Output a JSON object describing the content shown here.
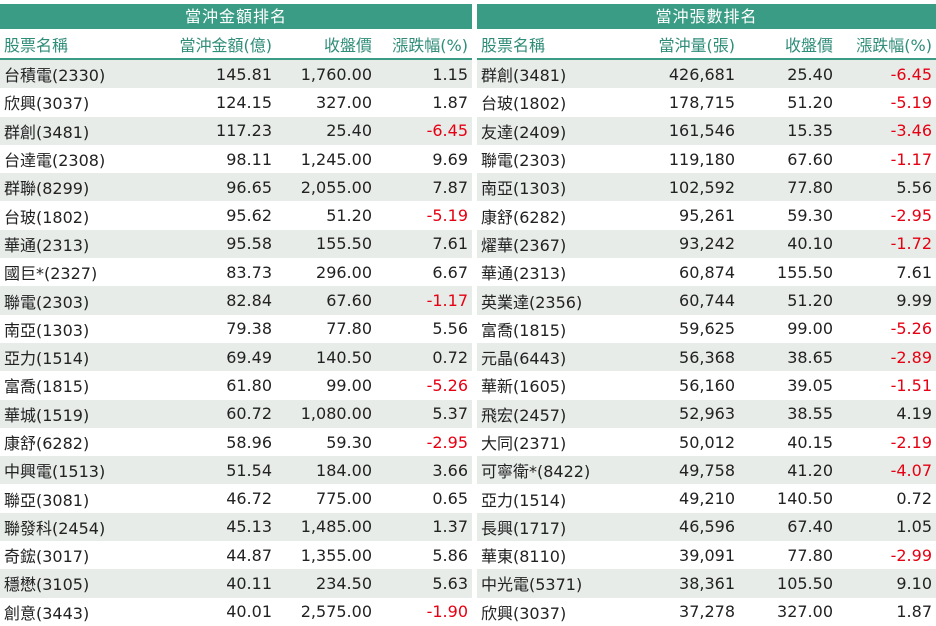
{
  "left": {
    "title": "當沖金額排名",
    "headers": [
      "股票名稱",
      "當沖金額(億)",
      "收盤價",
      "漲跌幅(%)"
    ],
    "rows": [
      [
        "台積電(2330)",
        "145.81",
        "1,760.00",
        "1.15"
      ],
      [
        "欣興(3037)",
        "124.15",
        "327.00",
        "1.87"
      ],
      [
        "群創(3481)",
        "117.23",
        "25.40",
        "-6.45"
      ],
      [
        "台達電(2308)",
        "98.11",
        "1,245.00",
        "9.69"
      ],
      [
        "群聯(8299)",
        "96.65",
        "2,055.00",
        "7.87"
      ],
      [
        "台玻(1802)",
        "95.62",
        "51.20",
        "-5.19"
      ],
      [
        "華通(2313)",
        "95.58",
        "155.50",
        "7.61"
      ],
      [
        "國巨*(2327)",
        "83.73",
        "296.00",
        "6.67"
      ],
      [
        "聯電(2303)",
        "82.84",
        "67.60",
        "-1.17"
      ],
      [
        "南亞(1303)",
        "79.38",
        "77.80",
        "5.56"
      ],
      [
        "亞力(1514)",
        "69.49",
        "140.50",
        "0.72"
      ],
      [
        "富喬(1815)",
        "61.80",
        "99.00",
        "-5.26"
      ],
      [
        "華城(1519)",
        "60.72",
        "1,080.00",
        "5.37"
      ],
      [
        "康舒(6282)",
        "58.96",
        "59.30",
        "-2.95"
      ],
      [
        "中興電(1513)",
        "51.54",
        "184.00",
        "3.66"
      ],
      [
        "聯亞(3081)",
        "46.72",
        "775.00",
        "0.65"
      ],
      [
        "聯發科(2454)",
        "45.13",
        "1,485.00",
        "1.37"
      ],
      [
        "奇鋐(3017)",
        "44.87",
        "1,355.00",
        "5.86"
      ],
      [
        "穩懋(3105)",
        "40.11",
        "234.50",
        "5.63"
      ],
      [
        "創意(3443)",
        "40.01",
        "2,575.00",
        "-1.90"
      ]
    ]
  },
  "right": {
    "title": "當沖張數排名",
    "headers": [
      "股票名稱",
      "當沖量(張)",
      "收盤價",
      "漲跌幅(%)"
    ],
    "rows": [
      [
        "群創(3481)",
        "426,681",
        "25.40",
        "-6.45"
      ],
      [
        "台玻(1802)",
        "178,715",
        "51.20",
        "-5.19"
      ],
      [
        "友達(2409)",
        "161,546",
        "15.35",
        "-3.46"
      ],
      [
        "聯電(2303)",
        "119,180",
        "67.60",
        "-1.17"
      ],
      [
        "南亞(1303)",
        "102,592",
        "77.80",
        "5.56"
      ],
      [
        "康舒(6282)",
        "95,261",
        "59.30",
        "-2.95"
      ],
      [
        "燿華(2367)",
        "93,242",
        "40.10",
        "-1.72"
      ],
      [
        "華通(2313)",
        "60,874",
        "155.50",
        "7.61"
      ],
      [
        "英業達(2356)",
        "60,744",
        "51.20",
        "9.99"
      ],
      [
        "富喬(1815)",
        "59,625",
        "99.00",
        "-5.26"
      ],
      [
        "元晶(6443)",
        "56,368",
        "38.65",
        "-2.89"
      ],
      [
        "華新(1605)",
        "56,160",
        "39.05",
        "-1.51"
      ],
      [
        "飛宏(2457)",
        "52,963",
        "38.55",
        "4.19"
      ],
      [
        "大同(2371)",
        "50,012",
        "40.15",
        "-2.19"
      ],
      [
        "可寧衛*(8422)",
        "49,758",
        "41.20",
        "-4.07"
      ],
      [
        "亞力(1514)",
        "49,210",
        "140.50",
        "0.72"
      ],
      [
        "長興(1717)",
        "46,596",
        "67.40",
        "1.05"
      ],
      [
        "華東(8110)",
        "39,091",
        "77.80",
        "-2.99"
      ],
      [
        "中光電(5371)",
        "38,361",
        "105.50",
        "9.10"
      ],
      [
        "欣興(3037)",
        "37,278",
        "327.00",
        "1.87"
      ]
    ]
  },
  "colors": {
    "header_bg": "#3a9c84",
    "negative": "#e60012",
    "stripe": "#e7ece8"
  }
}
